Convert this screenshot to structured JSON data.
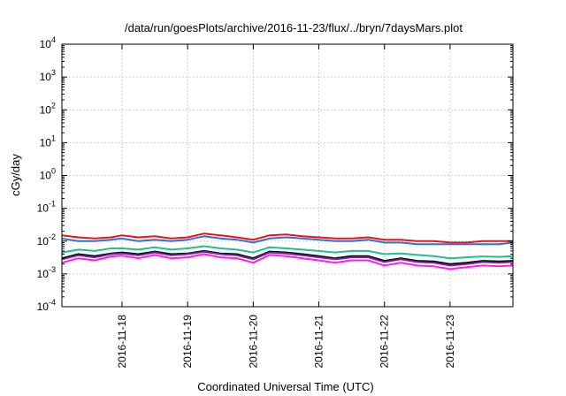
{
  "chart_data": {
    "type": "line",
    "title": "/data/run/goesPlots/archive/2016-11-23/flux/../bryn/7daysMars.plot",
    "xlabel": "Coordinated Universal Time (UTC)",
    "ylabel": "cGy/day",
    "yscale": "log",
    "ylim": [
      0.0001,
      10000
    ],
    "xlim": [
      "2016-11-17T02:00",
      "2016-11-23T23:00"
    ],
    "grid": true,
    "y_ticks": [
      {
        "base": "10",
        "exp": "-4",
        "value": 0.0001
      },
      {
        "base": "10",
        "exp": "-3",
        "value": 0.001
      },
      {
        "base": "10",
        "exp": "-2",
        "value": 0.01
      },
      {
        "base": "10",
        "exp": "-1",
        "value": 0.1
      },
      {
        "base": "10",
        "exp": "0",
        "value": 1
      },
      {
        "base": "10",
        "exp": "1",
        "value": 10
      },
      {
        "base": "10",
        "exp": "2",
        "value": 100
      },
      {
        "base": "10",
        "exp": "3",
        "value": 1000
      },
      {
        "base": "10",
        "exp": "4",
        "value": 10000
      }
    ],
    "x_ticks": [
      "2016-11-18",
      "2016-11-19",
      "2016-11-20",
      "2016-11-21",
      "2016-11-22",
      "2016-11-23"
    ],
    "x": [
      "2016-11-17T02:00",
      "2016-11-17T08:00",
      "2016-11-17T14:00",
      "2016-11-17T20:00",
      "2016-11-18T00:00",
      "2016-11-18T06:00",
      "2016-11-18T12:00",
      "2016-11-18T18:00",
      "2016-11-19T00:00",
      "2016-11-19T06:00",
      "2016-11-19T12:00",
      "2016-11-19T18:00",
      "2016-11-20T00:00",
      "2016-11-20T06:00",
      "2016-11-20T12:00",
      "2016-11-20T18:00",
      "2016-11-21T00:00",
      "2016-11-21T06:00",
      "2016-11-21T12:00",
      "2016-11-21T18:00",
      "2016-11-22T00:00",
      "2016-11-22T06:00",
      "2016-11-22T12:00",
      "2016-11-22T18:00",
      "2016-11-23T00:00",
      "2016-11-23T06:00",
      "2016-11-23T12:00",
      "2016-11-23T18:00",
      "2016-11-23T23:00"
    ],
    "series": [
      {
        "color": "#e8141c",
        "values": [
          0.015,
          0.013,
          0.012,
          0.013,
          0.015,
          0.013,
          0.014,
          0.012,
          0.013,
          0.017,
          0.015,
          0.013,
          0.011,
          0.015,
          0.016,
          0.014,
          0.013,
          0.012,
          0.012,
          0.013,
          0.011,
          0.011,
          0.01,
          0.01,
          0.009,
          0.009,
          0.01,
          0.01,
          0.01
        ]
      },
      {
        "color": "#2c6fe0",
        "values": [
          0.012,
          0.01,
          0.01,
          0.011,
          0.012,
          0.01,
          0.011,
          0.01,
          0.011,
          0.014,
          0.012,
          0.011,
          0.009,
          0.012,
          0.013,
          0.012,
          0.011,
          0.01,
          0.01,
          0.011,
          0.009,
          0.009,
          0.008,
          0.008,
          0.008,
          0.008,
          0.008,
          0.008,
          0.009
        ]
      },
      {
        "color": "#1fbf8f",
        "values": [
          0.0045,
          0.0055,
          0.005,
          0.006,
          0.006,
          0.0055,
          0.0065,
          0.0055,
          0.006,
          0.007,
          0.006,
          0.0055,
          0.0045,
          0.0065,
          0.006,
          0.0055,
          0.005,
          0.0045,
          0.005,
          0.005,
          0.004,
          0.0042,
          0.0038,
          0.0035,
          0.003,
          0.0032,
          0.0034,
          0.0033,
          0.0035
        ]
      },
      {
        "color": "#000000",
        "values": [
          0.003,
          0.004,
          0.0035,
          0.0042,
          0.0045,
          0.004,
          0.0048,
          0.004,
          0.0042,
          0.005,
          0.0042,
          0.004,
          0.003,
          0.0048,
          0.0045,
          0.004,
          0.0035,
          0.003,
          0.0035,
          0.0035,
          0.0025,
          0.003,
          0.0025,
          0.0024,
          0.002,
          0.0022,
          0.0025,
          0.0024,
          0.0025
        ]
      },
      {
        "color": "#7a1fa0",
        "values": [
          0.0028,
          0.0037,
          0.0032,
          0.004,
          0.0042,
          0.0037,
          0.0045,
          0.0037,
          0.004,
          0.0047,
          0.004,
          0.0037,
          0.0028,
          0.0045,
          0.0042,
          0.0037,
          0.0032,
          0.0028,
          0.0032,
          0.0032,
          0.0023,
          0.0028,
          0.0023,
          0.0022,
          0.0018,
          0.002,
          0.0023,
          0.0022,
          0.0023
        ]
      },
      {
        "color": "#ff1fe0",
        "values": [
          0.0022,
          0.003,
          0.0026,
          0.0034,
          0.0036,
          0.003,
          0.0038,
          0.003,
          0.0032,
          0.004,
          0.0032,
          0.003,
          0.0022,
          0.0038,
          0.0035,
          0.003,
          0.0026,
          0.0022,
          0.0026,
          0.0026,
          0.0018,
          0.0022,
          0.0018,
          0.0017,
          0.0014,
          0.0016,
          0.0018,
          0.0017,
          0.0018
        ]
      }
    ]
  }
}
